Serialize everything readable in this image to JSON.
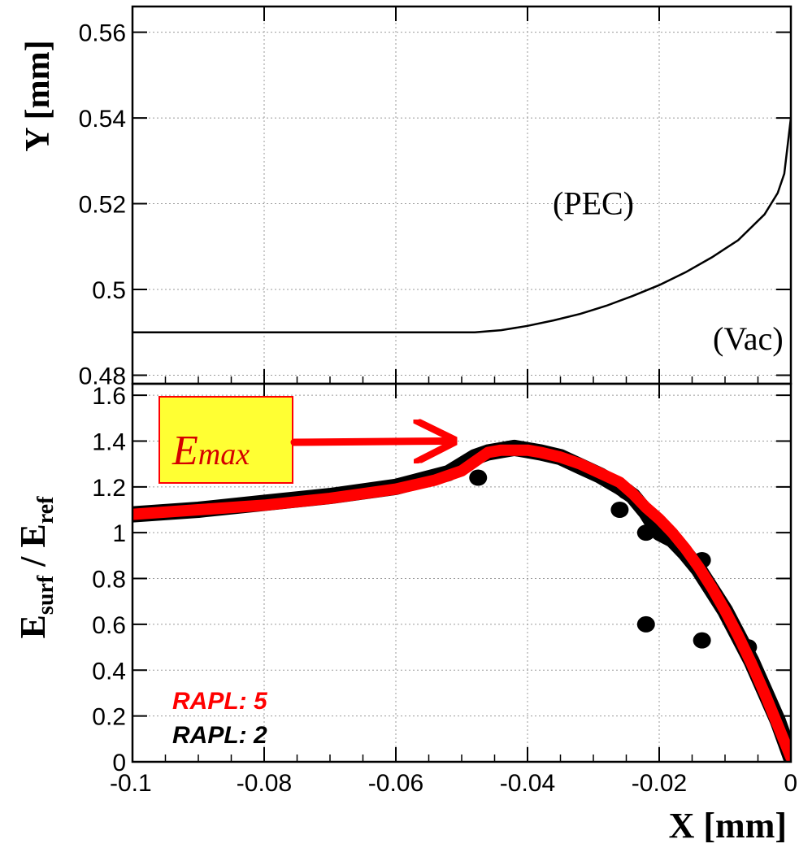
{
  "chart_data": [
    {
      "type": "line",
      "panel": "top",
      "ylabel": "Y  [mm]",
      "xlim": [
        -0.1,
        0
      ],
      "ylim": [
        0.478,
        0.566
      ],
      "yticks": [
        0.48,
        0.5,
        0.52,
        0.54,
        0.56
      ],
      "ytick_labels": [
        "0.48",
        "0.5",
        "0.52",
        "0.54",
        "0.56"
      ],
      "grid": true,
      "series": [
        {
          "color": "#000000",
          "x": [
            -0.1,
            -0.048,
            -0.044,
            -0.04,
            -0.036,
            -0.032,
            -0.028,
            -0.024,
            -0.02,
            -0.016,
            -0.012,
            -0.008,
            -0.004,
            -0.002,
            -0.001,
            0.0
          ],
          "y": [
            0.49,
            0.49,
            0.4905,
            0.4915,
            0.4928,
            0.4943,
            0.4962,
            0.4985,
            0.501,
            0.504,
            0.5075,
            0.5115,
            0.5175,
            0.5225,
            0.527,
            0.54
          ]
        }
      ],
      "annotations": [
        {
          "text": "(PEC)",
          "x": -0.03,
          "y": 0.5175
        },
        {
          "text": "(Vac)",
          "x": -0.0065,
          "y": 0.486
        }
      ]
    },
    {
      "type": "line",
      "panel": "bottom",
      "xlabel": "X  [mm]",
      "ylabel_parts": {
        "main1": "E",
        "sub1": "surf",
        "sep": " / ",
        "main2": "E",
        "sub2": "ref"
      },
      "xlim": [
        -0.1,
        0
      ],
      "ylim": [
        0,
        1.65
      ],
      "xticks": [
        -0.1,
        -0.08,
        -0.06,
        -0.04,
        -0.02,
        0
      ],
      "xtick_labels": [
        "-0.1",
        "-0.08",
        "-0.06",
        "-0.04",
        "-0.02",
        "0"
      ],
      "yticks": [
        0,
        0.2,
        0.4,
        0.6,
        0.8,
        1,
        1.2,
        1.4,
        1.6
      ],
      "ytick_labels": [
        "0",
        "0.2",
        "0.4",
        "0.6",
        "0.8",
        "1",
        "1.2",
        "1.4",
        "1.6"
      ],
      "grid": true,
      "legend_position": "bottom-left",
      "series": [
        {
          "name": "RAPL: 2",
          "color": "#000000",
          "x": [
            -0.1,
            -0.09,
            -0.08,
            -0.07,
            -0.06,
            -0.052,
            -0.048,
            -0.046,
            -0.044,
            -0.042,
            -0.04,
            -0.038,
            -0.035,
            -0.032,
            -0.029,
            -0.026,
            -0.024,
            -0.022,
            -0.02,
            -0.018,
            -0.016,
            -0.014,
            -0.012,
            -0.01,
            -0.008,
            -0.006,
            -0.004,
            -0.002,
            0.0
          ],
          "y": [
            1.08,
            1.1,
            1.13,
            1.16,
            1.2,
            1.26,
            1.33,
            1.35,
            1.36,
            1.37,
            1.36,
            1.35,
            1.33,
            1.29,
            1.25,
            1.2,
            1.16,
            1.09,
            1.0,
            0.97,
            0.91,
            0.84,
            0.75,
            0.66,
            0.55,
            0.44,
            0.31,
            0.18,
            0.02
          ],
          "outliers": {
            "x": [
              -0.0475,
              -0.026,
              -0.022,
              -0.022,
              -0.0135,
              -0.0135,
              -0.0065,
              -0.025
            ],
            "y": [
              1.24,
              1.1,
              1.0,
              0.6,
              0.88,
              0.53,
              0.5,
              1.18
            ]
          }
        },
        {
          "name": "RAPL: 5",
          "color": "#ff0000",
          "x": [
            -0.1,
            -0.09,
            -0.08,
            -0.07,
            -0.06,
            -0.054,
            -0.05,
            -0.048,
            -0.046,
            -0.044,
            -0.042,
            -0.04,
            -0.038,
            -0.035,
            -0.032,
            -0.029,
            -0.026,
            -0.024,
            -0.022,
            -0.02,
            -0.018,
            -0.016,
            -0.014,
            -0.012,
            -0.01,
            -0.008,
            -0.006,
            -0.004,
            -0.002,
            0.0
          ],
          "y": [
            1.08,
            1.1,
            1.12,
            1.15,
            1.19,
            1.23,
            1.27,
            1.31,
            1.35,
            1.36,
            1.36,
            1.36,
            1.35,
            1.33,
            1.3,
            1.26,
            1.22,
            1.17,
            1.11,
            1.06,
            1.0,
            0.93,
            0.85,
            0.76,
            0.66,
            0.55,
            0.43,
            0.3,
            0.16,
            0.02
          ]
        }
      ],
      "annotation": {
        "text": "Emax",
        "arrow_to": {
          "x": -0.052,
          "y": 1.4
        },
        "box_fill": "#ffff33",
        "box_stroke": "#ff0000",
        "text_color": "#d40000"
      }
    }
  ]
}
